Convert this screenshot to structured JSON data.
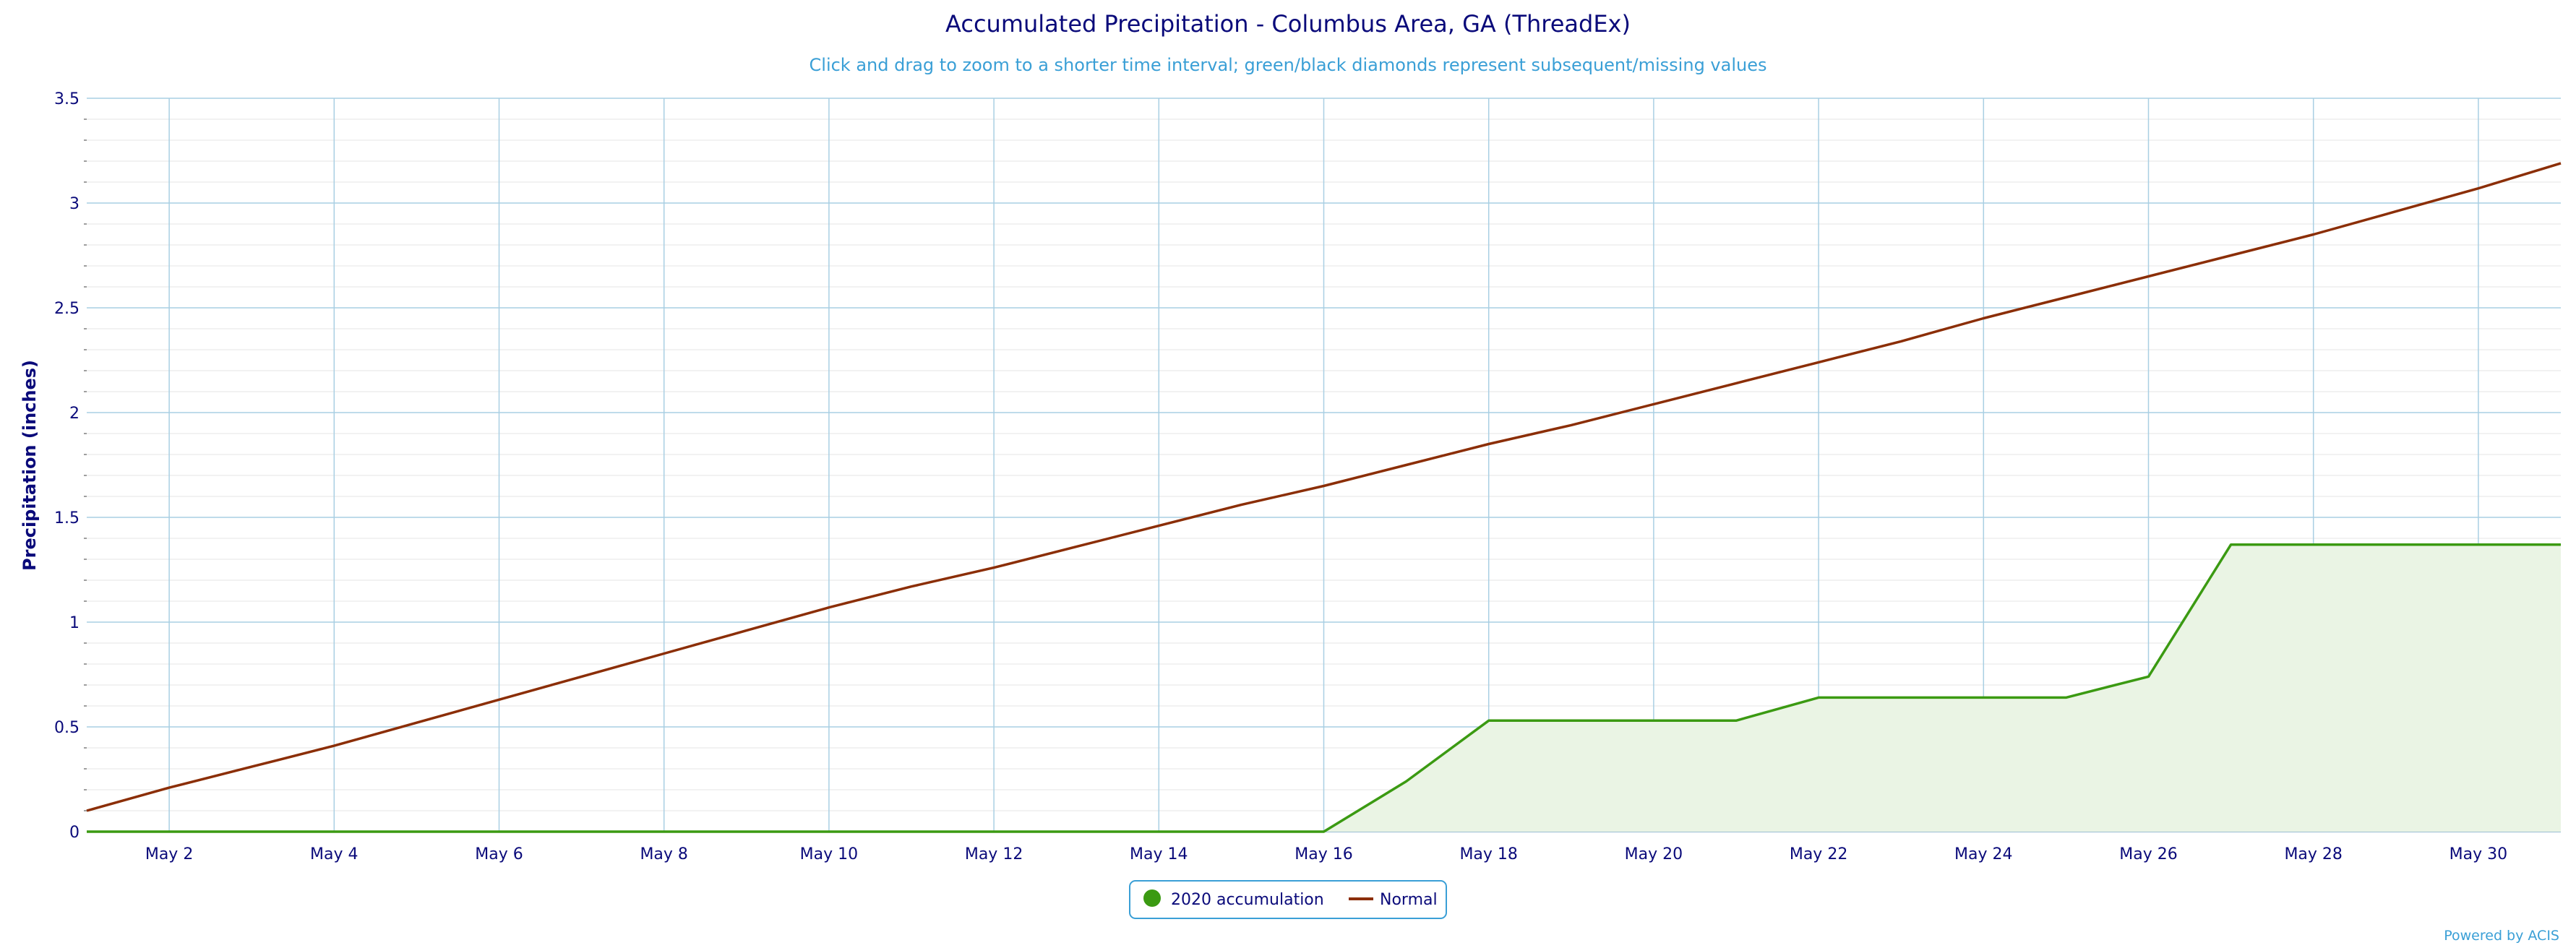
{
  "colors": {
    "accumulation": "#3b9a12",
    "accumulation_fill": "#eaf4e4",
    "normal": "#8b2e06",
    "grid": "#a9cfe3",
    "minor_grid": "#e6e6e6",
    "text": "#0a0a7a",
    "subtitle": "#3a9fd6"
  },
  "credit": "Powered by ACIS",
  "chart_data": {
    "type": "area",
    "title": "Accumulated Precipitation - Columbus Area, GA (ThreadEx)",
    "subtitle": "Click and drag to zoom to a shorter time interval; green/black diamonds represent subsequent/missing values",
    "xlabel": "",
    "ylabel": "Precipitation (inches)",
    "x_ticks": [
      "May 2",
      "May 4",
      "May 6",
      "May 8",
      "May 10",
      "May 12",
      "May 14",
      "May 16",
      "May 18",
      "May 20",
      "May 22",
      "May 24",
      "May 26",
      "May 28",
      "May 30"
    ],
    "x_tick_days": [
      2,
      4,
      6,
      8,
      10,
      12,
      14,
      16,
      18,
      20,
      22,
      24,
      26,
      28,
      30
    ],
    "xlim": [
      1,
      31
    ],
    "ylim": [
      0,
      3.5
    ],
    "y_ticks": [
      "0",
      "0.5",
      "1",
      "1.5",
      "2",
      "2.5",
      "3",
      "3.5"
    ],
    "y_tick_values": [
      0,
      0.5,
      1,
      1.5,
      2,
      2.5,
      3,
      3.5
    ],
    "grid": true,
    "legend_position": "bottom-center",
    "x": [
      1,
      2,
      3,
      4,
      5,
      6,
      7,
      8,
      9,
      10,
      11,
      12,
      13,
      14,
      15,
      16,
      17,
      18,
      19,
      20,
      21,
      22,
      23,
      24,
      25,
      26,
      27,
      28,
      29,
      30,
      31
    ],
    "series": [
      {
        "name": "2020 accumulation",
        "style": "area",
        "values": [
          0,
          0,
          0,
          0,
          0,
          0,
          0,
          0,
          0,
          0,
          0,
          0,
          0,
          0,
          0,
          0,
          0.24,
          0.53,
          0.53,
          0.53,
          0.53,
          0.64,
          0.64,
          0.64,
          0.64,
          0.74,
          1.37,
          1.37,
          1.37,
          1.37,
          1.37
        ]
      },
      {
        "name": "Normal",
        "style": "line",
        "values": [
          0.1,
          0.21,
          0.31,
          0.41,
          0.52,
          0.63,
          0.74,
          0.85,
          0.96,
          1.07,
          1.17,
          1.26,
          1.36,
          1.46,
          1.56,
          1.65,
          1.75,
          1.85,
          1.94,
          2.04,
          2.14,
          2.24,
          2.34,
          2.45,
          2.55,
          2.65,
          2.75,
          2.85,
          2.96,
          3.07,
          3.19
        ]
      }
    ]
  }
}
